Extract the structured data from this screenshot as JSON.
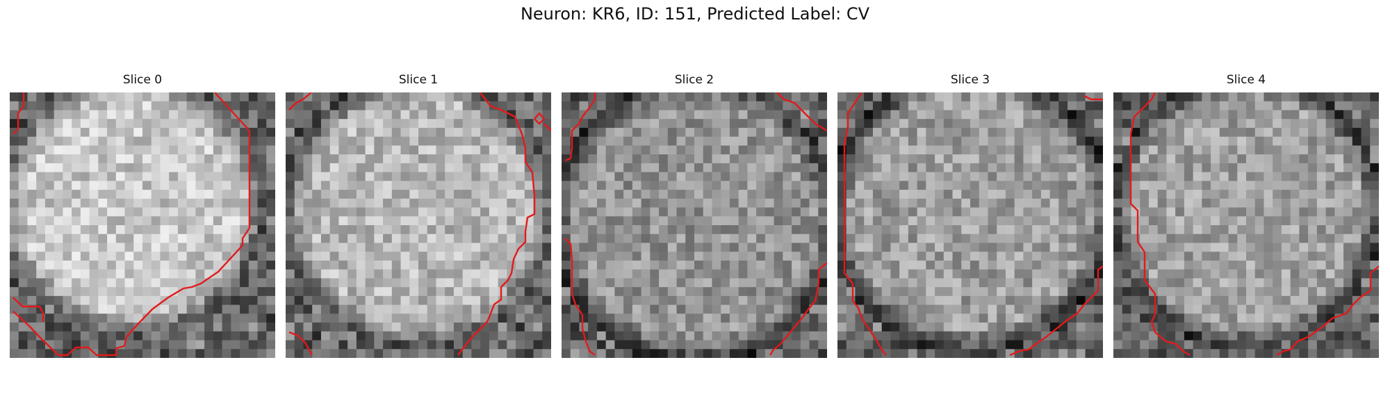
{
  "figure": {
    "title": "Neuron: KR6, ID: 151, Predicted Label: CV"
  },
  "panels": [
    {
      "title": "Slice 0",
      "seed": 11,
      "center": [
        0.46,
        0.42
      ],
      "radius": 0.5,
      "bright": 0.78
    },
    {
      "title": "Slice 1",
      "seed": 23,
      "center": [
        0.5,
        0.45
      ],
      "radius": 0.52,
      "bright": 0.72
    },
    {
      "title": "Slice 2",
      "seed": 37,
      "center": [
        0.5,
        0.48
      ],
      "radius": 0.55,
      "bright": 0.58
    },
    {
      "title": "Slice 3",
      "seed": 41,
      "center": [
        0.5,
        0.45
      ],
      "radius": 0.54,
      "bright": 0.62
    },
    {
      "title": "Slice 4",
      "seed": 53,
      "center": [
        0.5,
        0.45
      ],
      "radius": 0.52,
      "bright": 0.63
    }
  ],
  "colors": {
    "contour": "#e31a1c",
    "background": "#ffffff"
  },
  "image": {
    "grid_size": 30,
    "colormap": "gray"
  }
}
